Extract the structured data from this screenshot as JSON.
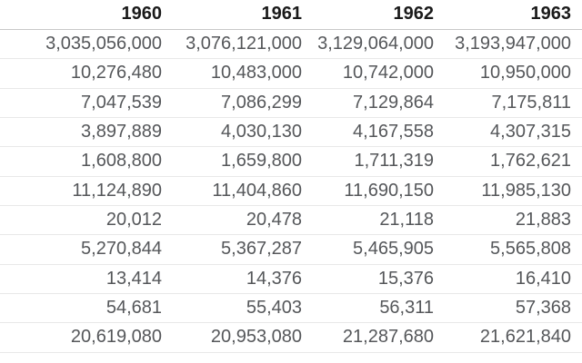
{
  "table": {
    "headers": [
      "1960",
      "1961",
      "1962",
      "1963"
    ],
    "rows": [
      [
        "3,035,056,000",
        "3,076,121,000",
        "3,129,064,000",
        "3,193,947,000"
      ],
      [
        "10,276,480",
        "10,483,000",
        "10,742,000",
        "10,950,000"
      ],
      [
        "7,047,539",
        "7,086,299",
        "7,129,864",
        "7,175,811"
      ],
      [
        "3,897,889",
        "4,030,130",
        "4,167,558",
        "4,307,315"
      ],
      [
        "1,608,800",
        "1,659,800",
        "1,711,319",
        "1,762,621"
      ],
      [
        "11,124,890",
        "11,404,860",
        "11,690,150",
        "11,985,130"
      ],
      [
        "20,012",
        "20,478",
        "21,118",
        "21,883"
      ],
      [
        "5,270,844",
        "5,367,287",
        "5,465,905",
        "5,565,808"
      ],
      [
        "13,414",
        "14,376",
        "15,376",
        "16,410"
      ],
      [
        "54,681",
        "55,403",
        "56,311",
        "57,368"
      ],
      [
        "20,619,080",
        "20,953,080",
        "21,287,680",
        "21,621,840"
      ]
    ]
  },
  "colors": {
    "background": "#ffffff",
    "header_text": "#1a1a1a",
    "cell_text": "#55575a",
    "header_border": "#c9c9c9",
    "row_border": "#e8e8e8"
  }
}
